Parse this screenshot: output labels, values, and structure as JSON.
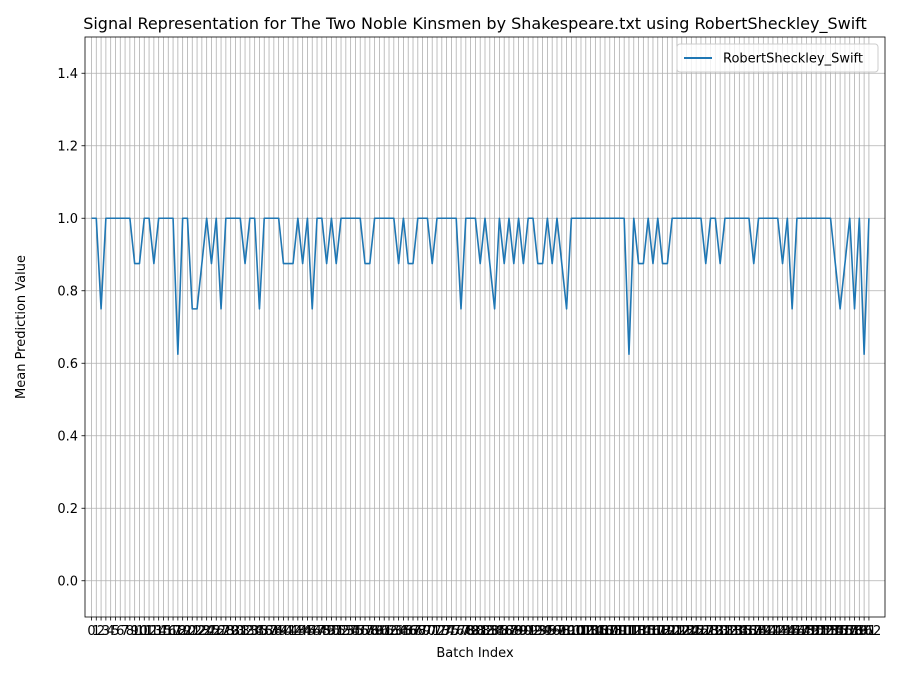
{
  "chart_data": {
    "type": "line",
    "title": "Signal Representation for The Two Noble Kinsmen by Shakespeare.txt using RobertSheckley_Swift",
    "xlabel": "Batch Index",
    "ylabel": "Mean Prediction Value",
    "ylim": [
      -0.1,
      1.5
    ],
    "xlim": [
      -1.35,
      165.35
    ],
    "yticks": [
      0.0,
      0.2,
      0.4,
      0.6,
      0.8,
      1.0,
      1.2,
      1.4
    ],
    "ytick_labels": [
      "0.0",
      "0.2",
      "0.4",
      "0.6",
      "0.8",
      "1.0",
      "1.2",
      "1.4"
    ],
    "grid": true,
    "legend": "top-right",
    "series": [
      {
        "name": "RobertSheckley_Swift",
        "color": "#1f77b4",
        "values": [
          1.0,
          1.0,
          0.75,
          1.0,
          1.0,
          1.0,
          1.0,
          1.0,
          1.0,
          0.875,
          0.875,
          1.0,
          1.0,
          0.875,
          1.0,
          1.0,
          1.0,
          1.0,
          0.625,
          1.0,
          1.0,
          0.75,
          0.75,
          0.875,
          1.0,
          0.875,
          1.0,
          0.75,
          1.0,
          1.0,
          1.0,
          1.0,
          0.875,
          1.0,
          1.0,
          0.75,
          1.0,
          1.0,
          1.0,
          1.0,
          0.875,
          0.875,
          0.875,
          1.0,
          0.875,
          1.0,
          0.75,
          1.0,
          1.0,
          0.875,
          1.0,
          0.875,
          1.0,
          1.0,
          1.0,
          1.0,
          1.0,
          0.875,
          0.875,
          1.0,
          1.0,
          1.0,
          1.0,
          1.0,
          0.875,
          1.0,
          0.875,
          0.875,
          1.0,
          1.0,
          1.0,
          0.875,
          1.0,
          1.0,
          1.0,
          1.0,
          1.0,
          0.75,
          1.0,
          1.0,
          1.0,
          0.875,
          1.0,
          0.875,
          0.75,
          1.0,
          0.875,
          1.0,
          0.875,
          1.0,
          0.875,
          1.0,
          1.0,
          0.875,
          0.875,
          1.0,
          0.875,
          1.0,
          0.875,
          0.75,
          1.0,
          1.0,
          1.0,
          1.0,
          1.0,
          1.0,
          1.0,
          1.0,
          1.0,
          1.0,
          1.0,
          1.0,
          0.625,
          1.0,
          0.875,
          0.875,
          1.0,
          0.875,
          1.0,
          0.875,
          0.875,
          1.0,
          1.0,
          1.0,
          1.0,
          1.0,
          1.0,
          1.0,
          0.875,
          1.0,
          1.0,
          0.875,
          1.0,
          1.0,
          1.0,
          1.0,
          1.0,
          1.0,
          0.875,
          1.0,
          1.0,
          1.0,
          1.0,
          1.0,
          0.875,
          1.0,
          0.75,
          1.0,
          1.0,
          1.0,
          1.0,
          1.0,
          1.0,
          1.0,
          1.0,
          0.875,
          0.75,
          0.875,
          1.0,
          0.75,
          1.0,
          0.625,
          1.0
        ]
      }
    ]
  }
}
